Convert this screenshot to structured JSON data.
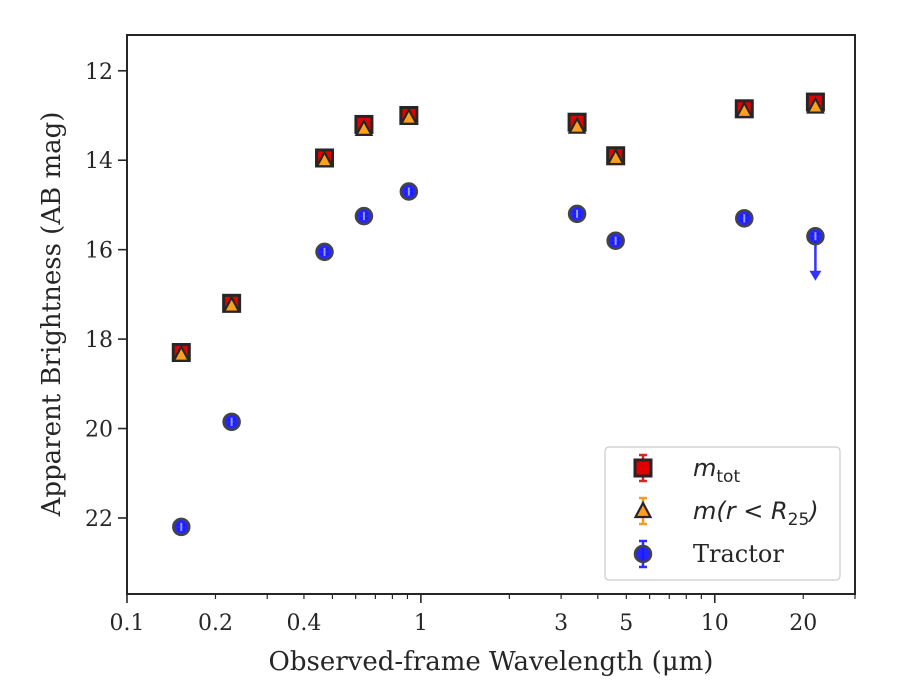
{
  "chart_data": {
    "type": "scatter",
    "xlabel": "Observed-frame Wavelength (μm)",
    "ylabel": "Apparent Brightness (AB mag)",
    "xscale": "log",
    "xlim": [
      0.1,
      30
    ],
    "ylim": [
      23.7,
      11.2
    ],
    "y_inverted": true,
    "grid": false,
    "legend_position": "lower-right",
    "x_ticks": [
      {
        "value": 0.1,
        "label": "0.1"
      },
      {
        "value": 0.2,
        "label": "0.2"
      },
      {
        "value": 0.4,
        "label": "0.4"
      },
      {
        "value": 1,
        "label": "1"
      },
      {
        "value": 3,
        "label": "3"
      },
      {
        "value": 5,
        "label": "5"
      },
      {
        "value": 10,
        "label": "10"
      },
      {
        "value": 20,
        "label": "20"
      }
    ],
    "y_ticks": [
      {
        "value": 12,
        "label": "12"
      },
      {
        "value": 14,
        "label": "14"
      },
      {
        "value": 16,
        "label": "16"
      },
      {
        "value": 18,
        "label": "18"
      },
      {
        "value": 20,
        "label": "20"
      },
      {
        "value": 22,
        "label": "22"
      }
    ],
    "series": [
      {
        "key": "mtot",
        "legend_base": "m",
        "legend_sub": "tot",
        "marker": "square",
        "color": "#e00000",
        "errcolor": "#d62728",
        "x": [
          0.153,
          0.227,
          0.47,
          0.64,
          0.91,
          3.4,
          4.6,
          12.6,
          22.0
        ],
        "y": [
          18.3,
          17.2,
          13.95,
          13.2,
          13.0,
          13.15,
          13.9,
          12.85,
          12.7
        ],
        "yerr": [
          0.08,
          0.08,
          0.12,
          0.12,
          0.12,
          0.08,
          0.08,
          0.12,
          0.12
        ]
      },
      {
        "key": "mr25",
        "legend_base": "m(r < R",
        "legend_sub": "25",
        "legend_tail": ")",
        "marker": "triangle",
        "color": "#ff9f1c",
        "errcolor": "#f0a020",
        "x": [
          0.153,
          0.227,
          0.47,
          0.64,
          0.91,
          3.4,
          4.6,
          12.6,
          22.0
        ],
        "y": [
          18.35,
          17.25,
          14.0,
          13.3,
          13.05,
          13.25,
          13.95,
          12.9,
          12.8
        ],
        "yerr": [
          0.05,
          0.05,
          0.05,
          0.05,
          0.05,
          0.05,
          0.05,
          0.05,
          0.05
        ]
      },
      {
        "key": "tractor",
        "legend_base": "Tractor",
        "marker": "circle",
        "color": "#1a1aff",
        "errcolor": "#2b2bff",
        "x": [
          0.153,
          0.227,
          0.47,
          0.64,
          0.91,
          3.4,
          4.6,
          12.6,
          22.0
        ],
        "y": [
          22.2,
          19.85,
          16.05,
          15.25,
          14.7,
          15.2,
          15.8,
          15.3,
          15.7
        ],
        "yerr": [
          0.05,
          0.05,
          0.05,
          0.05,
          0.05,
          0.05,
          0.05,
          0.05,
          0.05
        ],
        "upper_limit_index": 8
      }
    ]
  }
}
